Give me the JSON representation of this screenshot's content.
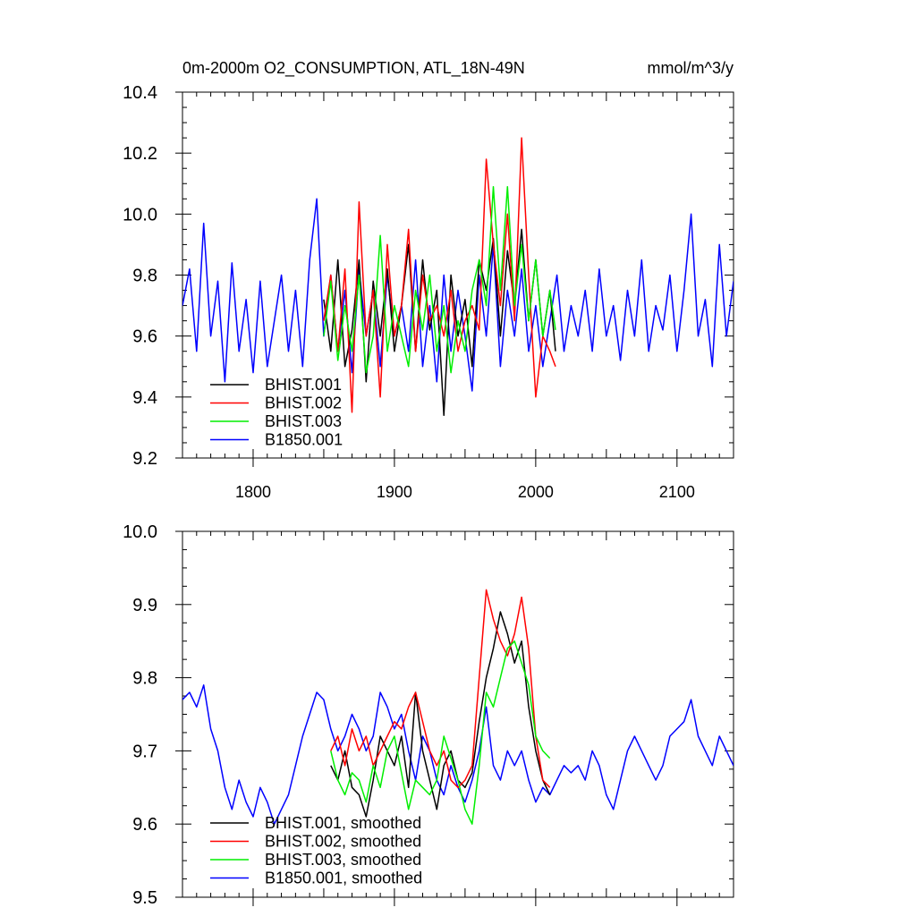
{
  "chart_data": [
    {
      "type": "line",
      "title": "0m-2000m O2_CONSUMPTION, ATL_18N-49N",
      "units": "mmol/m^3/y",
      "xlim": [
        1750,
        2140
      ],
      "ylim": [
        9.2,
        10.4
      ],
      "xticks": [
        1800,
        1900,
        2000,
        2100
      ],
      "xtick_labels": [
        "1800",
        "1900",
        "2000",
        "2100"
      ],
      "yticks": [
        9.2,
        9.4,
        9.6,
        9.8,
        10.0,
        10.2,
        10.4
      ],
      "ytick_labels": [
        "9.2",
        "9.4",
        "9.6",
        "9.8",
        "10.0",
        "10.2",
        "10.4"
      ],
      "legend_position": "bottom-left",
      "series": [
        {
          "name": "BHIST.001",
          "color": "#000000",
          "x": [
            1850,
            1855,
            1860,
            1865,
            1870,
            1875,
            1880,
            1885,
            1890,
            1895,
            1900,
            1905,
            1910,
            1915,
            1920,
            1925,
            1930,
            1935,
            1940,
            1945,
            1950,
            1955,
            1960,
            1965,
            1970,
            1975,
            1980,
            1985,
            1990,
            1995,
            2000,
            2005,
            2010,
            2014
          ],
          "y": [
            9.72,
            9.55,
            9.85,
            9.5,
            9.62,
            9.85,
            9.45,
            9.78,
            9.6,
            9.82,
            9.55,
            9.7,
            9.9,
            9.55,
            9.85,
            9.62,
            9.75,
            9.34,
            9.8,
            9.6,
            9.72,
            9.5,
            9.85,
            9.75,
            9.92,
            9.6,
            9.88,
            9.7,
            9.95,
            9.65,
            9.85,
            9.6,
            9.75,
            9.55
          ]
        },
        {
          "name": "BHIST.002",
          "color": "#ff0000",
          "x": [
            1850,
            1855,
            1860,
            1865,
            1870,
            1875,
            1880,
            1885,
            1890,
            1895,
            1900,
            1905,
            1910,
            1915,
            1920,
            1925,
            1930,
            1935,
            1940,
            1945,
            1950,
            1955,
            1960,
            1965,
            1970,
            1975,
            1980,
            1985,
            1990,
            1995,
            2000,
            2005,
            2010,
            2014
          ],
          "y": [
            9.65,
            9.8,
            9.55,
            9.82,
            9.35,
            10.04,
            9.6,
            9.75,
            9.4,
            9.9,
            9.6,
            9.7,
            9.95,
            9.55,
            9.8,
            9.65,
            9.7,
            9.6,
            9.75,
            9.55,
            9.65,
            9.7,
            9.62,
            10.18,
            9.9,
            9.7,
            10.0,
            9.65,
            10.25,
            9.8,
            9.4,
            9.6,
            9.55,
            9.5
          ]
        },
        {
          "name": "BHIST.003",
          "color": "#00ee00",
          "x": [
            1850,
            1855,
            1860,
            1865,
            1870,
            1875,
            1880,
            1885,
            1890,
            1895,
            1900,
            1905,
            1910,
            1915,
            1920,
            1925,
            1930,
            1935,
            1940,
            1945,
            1950,
            1955,
            1960,
            1965,
            1970,
            1975,
            1980,
            1985,
            1990,
            1995,
            2000,
            2005,
            2010,
            2014
          ],
          "y": [
            9.6,
            9.78,
            9.52,
            9.7,
            9.55,
            9.8,
            9.48,
            9.6,
            9.93,
            9.55,
            9.7,
            9.6,
            9.5,
            9.75,
            9.62,
            9.8,
            9.55,
            9.7,
            9.48,
            9.65,
            9.55,
            9.75,
            9.85,
            9.7,
            10.09,
            9.75,
            10.09,
            9.7,
            9.9,
            9.65,
            9.85,
            9.6,
            9.75,
            9.62
          ]
        },
        {
          "name": "B1850.001",
          "color": "#0000ff",
          "x": [
            1750,
            1755,
            1760,
            1765,
            1770,
            1775,
            1780,
            1785,
            1790,
            1795,
            1800,
            1805,
            1810,
            1815,
            1820,
            1825,
            1830,
            1835,
            1840,
            1845,
            1850,
            1855,
            1860,
            1865,
            1870,
            1875,
            1880,
            1885,
            1890,
            1895,
            1900,
            1905,
            1910,
            1915,
            1920,
            1925,
            1930,
            1935,
            1940,
            1945,
            1950,
            1955,
            1960,
            1965,
            1970,
            1975,
            1980,
            1985,
            1990,
            1995,
            2000,
            2005,
            2010,
            2015,
            2020,
            2025,
            2030,
            2035,
            2040,
            2045,
            2050,
            2055,
            2060,
            2065,
            2070,
            2075,
            2080,
            2085,
            2090,
            2095,
            2100,
            2105,
            2110,
            2115,
            2120,
            2125,
            2130,
            2135,
            2140
          ],
          "y": [
            9.7,
            9.82,
            9.55,
            9.97,
            9.6,
            9.78,
            9.45,
            9.84,
            9.55,
            9.72,
            9.48,
            9.78,
            9.5,
            9.65,
            9.8,
            9.55,
            9.75,
            9.5,
            9.85,
            10.05,
            9.6,
            9.8,
            9.55,
            9.75,
            9.48,
            9.82,
            9.6,
            9.75,
            9.5,
            9.8,
            9.6,
            9.7,
            9.55,
            9.85,
            9.5,
            9.7,
            9.45,
            9.8,
            9.55,
            9.75,
            9.6,
            9.42,
            9.8,
            9.6,
            9.9,
            9.5,
            9.75,
            9.6,
            9.82,
            9.55,
            9.7,
            9.5,
            9.65,
            9.8,
            9.55,
            9.7,
            9.6,
            9.75,
            9.55,
            9.82,
            9.6,
            9.7,
            9.52,
            9.75,
            9.6,
            9.85,
            9.55,
            9.7,
            9.62,
            9.8,
            9.55,
            9.75,
            10.0,
            9.6,
            9.72,
            9.5,
            9.9,
            9.6,
            9.78
          ]
        }
      ]
    },
    {
      "type": "line",
      "xlim": [
        1750,
        2140
      ],
      "ylim": [
        9.5,
        10.0
      ],
      "xticks": [
        1800,
        1900,
        2000,
        2100
      ],
      "yticks": [
        9.5,
        9.6,
        9.7,
        9.8,
        9.9,
        10.0
      ],
      "ytick_labels": [
        "9.5",
        "9.6",
        "9.7",
        "9.8",
        "9.9",
        "10.0"
      ],
      "legend_position": "bottom-left",
      "series": [
        {
          "name": "BHIST.001, smoothed",
          "color": "#000000",
          "x": [
            1855,
            1860,
            1865,
            1870,
            1875,
            1880,
            1885,
            1890,
            1895,
            1900,
            1905,
            1910,
            1915,
            1920,
            1925,
            1930,
            1935,
            1940,
            1945,
            1950,
            1955,
            1960,
            1965,
            1970,
            1975,
            1980,
            1985,
            1990,
            1995,
            2000,
            2005,
            2010
          ],
          "y": [
            9.68,
            9.66,
            9.7,
            9.65,
            9.64,
            9.61,
            9.66,
            9.72,
            9.7,
            9.68,
            9.72,
            9.65,
            9.78,
            9.7,
            9.66,
            9.62,
            9.68,
            9.7,
            9.66,
            9.65,
            9.67,
            9.74,
            9.8,
            9.84,
            9.89,
            9.86,
            9.82,
            9.85,
            9.76,
            9.7,
            9.66,
            9.64
          ]
        },
        {
          "name": "BHIST.002, smoothed",
          "color": "#ff0000",
          "x": [
            1855,
            1860,
            1865,
            1870,
            1875,
            1880,
            1885,
            1890,
            1895,
            1900,
            1905,
            1910,
            1915,
            1920,
            1925,
            1930,
            1935,
            1940,
            1945,
            1950,
            1955,
            1960,
            1965,
            1970,
            1975,
            1980,
            1985,
            1990,
            1995,
            2000,
            2005,
            2010
          ],
          "y": [
            9.7,
            9.72,
            9.68,
            9.73,
            9.7,
            9.72,
            9.68,
            9.7,
            9.72,
            9.74,
            9.73,
            9.76,
            9.78,
            9.74,
            9.7,
            9.68,
            9.7,
            9.66,
            9.65,
            9.66,
            9.68,
            9.8,
            9.92,
            9.88,
            9.85,
            9.83,
            9.86,
            9.91,
            9.84,
            9.72,
            9.66,
            9.65
          ]
        },
        {
          "name": "BHIST.003, smoothed",
          "color": "#00ee00",
          "x": [
            1855,
            1860,
            1865,
            1870,
            1875,
            1880,
            1885,
            1890,
            1895,
            1900,
            1905,
            1910,
            1915,
            1920,
            1925,
            1930,
            1935,
            1940,
            1945,
            1950,
            1955,
            1960,
            1965,
            1970,
            1975,
            1980,
            1985,
            1990,
            1995,
            2000,
            2005,
            2010
          ],
          "y": [
            9.7,
            9.66,
            9.64,
            9.67,
            9.66,
            9.63,
            9.68,
            9.65,
            9.7,
            9.72,
            9.67,
            9.62,
            9.66,
            9.65,
            9.64,
            9.66,
            9.72,
            9.69,
            9.66,
            9.62,
            9.6,
            9.68,
            9.78,
            9.76,
            9.8,
            9.84,
            9.85,
            9.82,
            9.79,
            9.72,
            9.7,
            9.69
          ]
        },
        {
          "name": "B1850.001, smoothed",
          "color": "#0000ff",
          "x": [
            1750,
            1755,
            1760,
            1765,
            1770,
            1775,
            1780,
            1785,
            1790,
            1795,
            1800,
            1805,
            1810,
            1815,
            1820,
            1825,
            1830,
            1835,
            1840,
            1845,
            1850,
            1855,
            1860,
            1865,
            1870,
            1875,
            1880,
            1885,
            1890,
            1895,
            1900,
            1905,
            1910,
            1915,
            1920,
            1925,
            1930,
            1935,
            1940,
            1945,
            1950,
            1955,
            1960,
            1965,
            1970,
            1975,
            1980,
            1985,
            1990,
            1995,
            2000,
            2005,
            2010,
            2015,
            2020,
            2025,
            2030,
            2035,
            2040,
            2045,
            2050,
            2055,
            2060,
            2065,
            2070,
            2075,
            2080,
            2085,
            2090,
            2095,
            2100,
            2105,
            2110,
            2115,
            2120,
            2125,
            2130,
            2135,
            2140
          ],
          "y": [
            9.77,
            9.78,
            9.76,
            9.79,
            9.73,
            9.7,
            9.65,
            9.62,
            9.66,
            9.63,
            9.61,
            9.65,
            9.63,
            9.6,
            9.62,
            9.64,
            9.68,
            9.72,
            9.75,
            9.78,
            9.77,
            9.73,
            9.7,
            9.72,
            9.75,
            9.73,
            9.7,
            9.72,
            9.78,
            9.76,
            9.73,
            9.75,
            9.7,
            9.66,
            9.72,
            9.7,
            9.66,
            9.64,
            9.68,
            9.65,
            9.63,
            9.66,
            9.7,
            9.76,
            9.68,
            9.66,
            9.7,
            9.68,
            9.7,
            9.66,
            9.63,
            9.65,
            9.64,
            9.66,
            9.68,
            9.67,
            9.68,
            9.66,
            9.7,
            9.68,
            9.64,
            9.62,
            9.66,
            9.7,
            9.72,
            9.7,
            9.68,
            9.66,
            9.68,
            9.72,
            9.73,
            9.74,
            9.77,
            9.72,
            9.7,
            9.68,
            9.72,
            9.7,
            9.68
          ]
        }
      ]
    }
  ]
}
